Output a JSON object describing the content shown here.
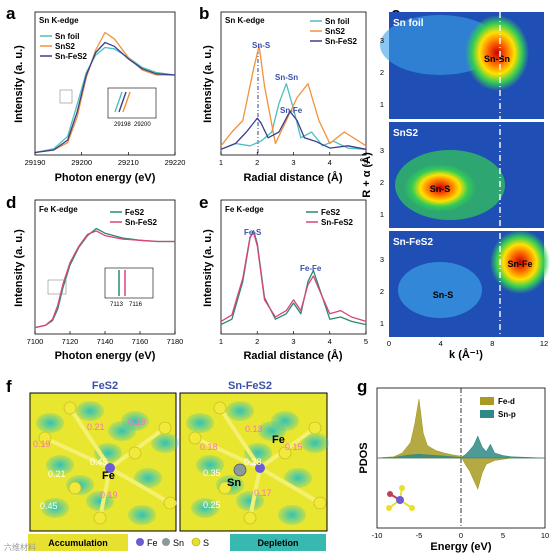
{
  "panels": {
    "a": "a",
    "b": "b",
    "c": "c",
    "d": "d",
    "e": "e",
    "f": "f",
    "g": "g"
  },
  "colors": {
    "sn_foil": "#4bbfbe",
    "sns2": "#f0923a",
    "sn_fes2": "#3c3f8f",
    "fes2": "#2a8a6e",
    "sn_fes2_fe": "#d9437f",
    "fe_d": "#a89a22",
    "sn_p": "#2e8a86",
    "accumulation": "#e8e030",
    "depletion": "#37b8b0"
  },
  "chart_data": [
    {
      "id": "a",
      "type": "line",
      "title": "Sn K-edge",
      "xlabel": "Photon energy (eV)",
      "ylabel": "Intensity (a. u.)",
      "xlim": [
        29190,
        29220
      ],
      "xticks": [
        "29190",
        "29200",
        "29210",
        "29220"
      ],
      "series": [
        {
          "name": "Sn foil",
          "x": [
            29190,
            29194,
            29197,
            29199,
            29201,
            29203,
            29205,
            29207,
            29210,
            29213,
            29216,
            29220
          ],
          "y": [
            0.02,
            0.05,
            0.15,
            0.4,
            0.66,
            0.8,
            0.86,
            0.85,
            0.78,
            0.7,
            0.66,
            0.64
          ]
        },
        {
          "name": "SnS2",
          "x": [
            29190,
            29194,
            29197,
            29199,
            29201,
            29203,
            29205,
            29207,
            29210,
            29213,
            29216,
            29220
          ],
          "y": [
            0.02,
            0.04,
            0.1,
            0.3,
            0.62,
            0.84,
            0.98,
            0.93,
            0.78,
            0.68,
            0.64,
            0.64
          ]
        },
        {
          "name": "Sn-FeS2",
          "x": [
            29190,
            29194,
            29197,
            29199,
            29201,
            29203,
            29205,
            29207,
            29210,
            29213,
            29216,
            29220
          ],
          "y": [
            0.02,
            0.04,
            0.12,
            0.34,
            0.64,
            0.82,
            0.9,
            0.87,
            0.77,
            0.69,
            0.65,
            0.64
          ]
        }
      ],
      "inset_ticks": [
        "29198",
        "29200"
      ]
    },
    {
      "id": "b",
      "type": "line",
      "title": "Sn K-edge",
      "xlabel": "Radial distance (Å)",
      "ylabel": "Intensity (a. u.)",
      "xlim": [
        1,
        5
      ],
      "xticks": [
        "1",
        "2",
        "3",
        "4",
        "5"
      ],
      "annotations": [
        "Sn-S",
        "Sn-Sn",
        "Sn-Fe"
      ],
      "series": [
        {
          "name": "Sn foil",
          "x": [
            1.0,
            1.4,
            1.8,
            2.1,
            2.4,
            2.6,
            2.8,
            3.0,
            3.2,
            3.5,
            3.8,
            4.1,
            4.5,
            5.0
          ],
          "y": [
            0.05,
            0.1,
            0.08,
            0.12,
            0.2,
            0.45,
            0.62,
            0.4,
            0.15,
            0.2,
            0.08,
            0.12,
            0.06,
            0.05
          ]
        },
        {
          "name": "SnS2",
          "x": [
            1.0,
            1.3,
            1.6,
            1.9,
            2.05,
            2.2,
            2.5,
            2.8,
            3.1,
            3.4,
            3.7,
            4.0,
            4.4,
            5.0
          ],
          "y": [
            0.08,
            0.2,
            0.3,
            0.75,
            0.95,
            0.6,
            0.1,
            0.3,
            0.5,
            0.62,
            0.3,
            0.1,
            0.2,
            0.08
          ]
        },
        {
          "name": "Sn-FeS2",
          "x": [
            1.0,
            1.4,
            1.7,
            2.0,
            2.1,
            2.3,
            2.6,
            2.9,
            3.1,
            3.3,
            3.6,
            4.0,
            4.5,
            5.0
          ],
          "y": [
            0.05,
            0.1,
            0.2,
            0.32,
            0.28,
            0.15,
            0.2,
            0.38,
            0.3,
            0.15,
            0.12,
            0.06,
            0.08,
            0.05
          ]
        }
      ]
    },
    {
      "id": "c",
      "type": "heatmap",
      "xlabel": "k (Å⁻¹)",
      "ylabel": "R + α (Å)",
      "xticks": [
        "0",
        "4",
        "8",
        "12"
      ],
      "yticks": [
        "1",
        "2",
        "3"
      ],
      "subplots": [
        {
          "label": "Sn foil",
          "spots": [
            {
              "k": 8.0,
              "r": 2.7,
              "label": "Sn-Sn"
            }
          ]
        },
        {
          "label": "SnS2",
          "spots": [
            {
              "k": 4.5,
              "r": 2.0,
              "label": "Sn-S"
            }
          ]
        },
        {
          "label": "Sn-FeS2",
          "spots": [
            {
              "k": 4.5,
              "r": 2.0,
              "label": "Sn-S"
            },
            {
              "k": 10.0,
              "r": 2.8,
              "label": "Sn-Fe"
            }
          ]
        }
      ]
    },
    {
      "id": "d",
      "type": "line",
      "title": "Fe K-edge",
      "xlabel": "Photon energy (eV)",
      "ylabel": "Intensity (a. u.)",
      "xlim": [
        7100,
        7180
      ],
      "xticks": [
        "7100",
        "7120",
        "7140",
        "7160",
        "7180"
      ],
      "inset_ticks": [
        "7113",
        "7116"
      ],
      "series": [
        {
          "name": "FeS2",
          "x": [
            7100,
            7106,
            7110,
            7113,
            7116,
            7120,
            7125,
            7130,
            7135,
            7140,
            7150,
            7160,
            7170,
            7180
          ],
          "y": [
            0.02,
            0.04,
            0.08,
            0.18,
            0.36,
            0.55,
            0.7,
            0.8,
            0.86,
            0.82,
            0.78,
            0.76,
            0.75,
            0.75
          ]
        },
        {
          "name": "Sn-FeS2",
          "x": [
            7100,
            7106,
            7110,
            7113,
            7116,
            7120,
            7125,
            7130,
            7135,
            7140,
            7150,
            7160,
            7170,
            7180
          ],
          "y": [
            0.02,
            0.04,
            0.09,
            0.21,
            0.39,
            0.57,
            0.71,
            0.81,
            0.84,
            0.8,
            0.77,
            0.76,
            0.75,
            0.75
          ]
        }
      ]
    },
    {
      "id": "e",
      "type": "line",
      "title": "Fe K-edge",
      "xlabel": "Radial distance (Å)",
      "ylabel": "Intensity (a. u.)",
      "xlim": [
        1,
        5
      ],
      "xticks": [
        "1",
        "2",
        "3",
        "4",
        "5"
      ],
      "annotations": [
        "Fe-S",
        "Fe-Fe"
      ],
      "series": [
        {
          "name": "FeS2",
          "x": [
            1.0,
            1.3,
            1.6,
            1.8,
            1.9,
            2.0,
            2.2,
            2.5,
            2.8,
            3.0,
            3.2,
            3.4,
            3.55,
            3.7,
            4.0,
            4.3,
            4.6,
            5.0
          ],
          "y": [
            0.05,
            0.1,
            0.45,
            0.85,
            0.92,
            0.8,
            0.3,
            0.1,
            0.15,
            0.25,
            0.15,
            0.45,
            0.55,
            0.4,
            0.1,
            0.12,
            0.08,
            0.05
          ]
        },
        {
          "name": "Sn-FeS2",
          "x": [
            1.0,
            1.3,
            1.6,
            1.8,
            1.9,
            2.0,
            2.2,
            2.5,
            2.8,
            3.0,
            3.2,
            3.4,
            3.55,
            3.7,
            4.0,
            4.3,
            4.6,
            5.0
          ],
          "y": [
            0.08,
            0.14,
            0.48,
            0.86,
            0.9,
            0.78,
            0.28,
            0.12,
            0.18,
            0.28,
            0.18,
            0.42,
            0.5,
            0.38,
            0.15,
            0.18,
            0.12,
            0.08
          ]
        }
      ]
    },
    {
      "id": "g",
      "type": "area",
      "xlabel": "Energy (eV)",
      "ylabel": "PDOS",
      "xlim": [
        -10,
        10
      ],
      "xticks": [
        "-10",
        "-5",
        "0",
        "5",
        "10"
      ],
      "series": [
        {
          "name": "Fe-d",
          "x": [
            -10,
            -8,
            -7,
            -6,
            -5.5,
            -5,
            -4.5,
            -4,
            -3,
            -2,
            -1,
            0,
            0.5,
            1,
            1.5,
            2,
            2.5,
            3,
            4,
            6,
            8,
            10
          ],
          "y": [
            0,
            0.02,
            0.08,
            0.25,
            0.55,
            0.95,
            0.4,
            0.2,
            0.12,
            0.08,
            0.05,
            0.03,
            -0.1,
            -0.2,
            -0.35,
            -0.5,
            -0.25,
            -0.1,
            -0.04,
            0,
            0,
            0
          ]
        },
        {
          "name": "Sn-p",
          "x": [
            -10,
            -8,
            -7,
            -6,
            -5,
            -4,
            -3,
            -2,
            -1,
            0,
            0.5,
            1,
            1.5,
            2,
            2.5,
            3,
            3.5,
            4,
            5,
            6,
            8,
            10
          ],
          "y": [
            0,
            0.01,
            0.03,
            0.05,
            0.06,
            0.05,
            0.04,
            0.03,
            0.02,
            0.01,
            0.05,
            0.12,
            0.2,
            0.35,
            0.18,
            0.1,
            0.22,
            0.08,
            0.04,
            0.02,
            0.01,
            0
          ]
        }
      ]
    }
  ],
  "panel_f": {
    "left_title": "FeS2",
    "right_title": "Sn-FeS2",
    "left_values": [
      "0.21",
      "0.19",
      "0.45",
      "0.21",
      "0.19",
      "0.19",
      "0.45"
    ],
    "right_values": [
      "0.18",
      "0.13",
      "0.15",
      "0.28",
      "0.35",
      "0.17",
      "0.25"
    ],
    "legend": {
      "accumulation": "Accumulation",
      "fe": "Fe",
      "sn": "Sn",
      "s": "S",
      "depletion": "Depletion"
    }
  },
  "watermark": "六维材料"
}
